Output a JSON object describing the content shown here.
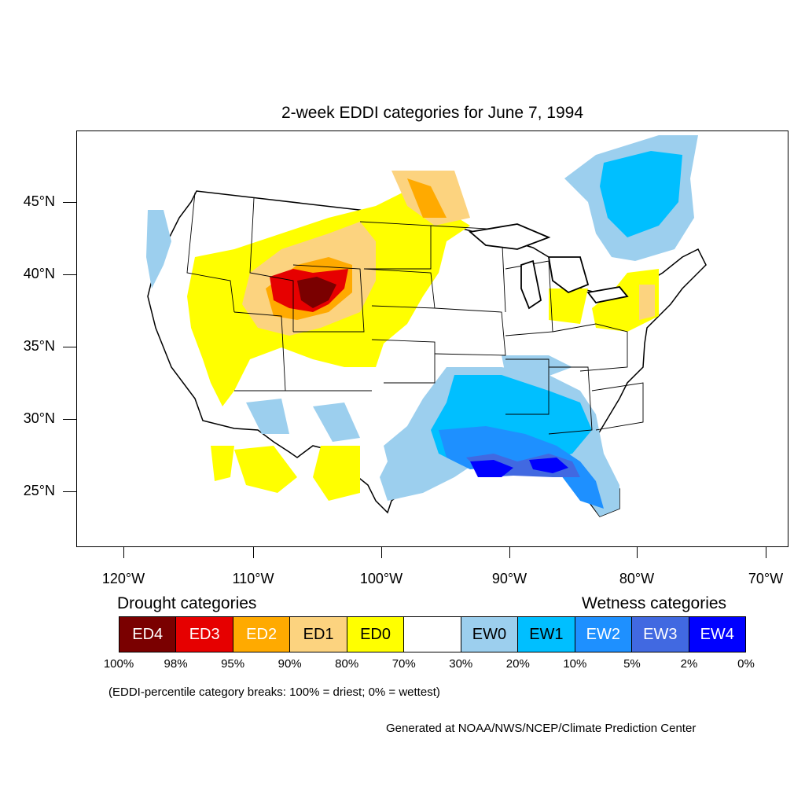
{
  "title": "2-week EDDI categories for June 7, 1994",
  "y_axis_labels": [
    "45°N",
    "40°N",
    "35°N",
    "30°N",
    "25°N"
  ],
  "x_axis_labels": [
    "120°W",
    "110°W",
    "100°W",
    "90°W",
    "80°W",
    "70°W"
  ],
  "legend": {
    "drought_heading": "Drought categories",
    "wetness_heading": "Wetness categories",
    "categories": [
      {
        "label": "ED4",
        "color": "#7a0000",
        "text_color": "#ffffff"
      },
      {
        "label": "ED3",
        "color": "#e60000",
        "text_color": "#ffffff"
      },
      {
        "label": "ED2",
        "color": "#ffaa00",
        "text_color": "#ffffff"
      },
      {
        "label": "ED1",
        "color": "#fcd37f",
        "text_color": "#000000"
      },
      {
        "label": "ED0",
        "color": "#ffff00",
        "text_color": "#000000"
      },
      {
        "label": "",
        "color": "#ffffff",
        "text_color": "#000000"
      },
      {
        "label": "EW0",
        "color": "#9ccfee",
        "text_color": "#000000"
      },
      {
        "label": "EW1",
        "color": "#00bfff",
        "text_color": "#000000"
      },
      {
        "label": "EW2",
        "color": "#1e90ff",
        "text_color": "#ffffff"
      },
      {
        "label": "EW3",
        "color": "#4169e1",
        "text_color": "#ffffff"
      },
      {
        "label": "EW4",
        "color": "#0000ff",
        "text_color": "#ffffff"
      }
    ],
    "percentile_breaks": [
      "100%",
      "98%",
      "95%",
      "90%",
      "80%",
      "70%",
      "30%",
      "20%",
      "10%",
      "5%",
      "2%",
      "0%"
    ]
  },
  "footnote": "(EDDI-percentile category breaks: 100% = driest; 0% = wettest)",
  "credit": "Generated at NOAA/NWS/NCEP/Climate Prediction Center"
}
